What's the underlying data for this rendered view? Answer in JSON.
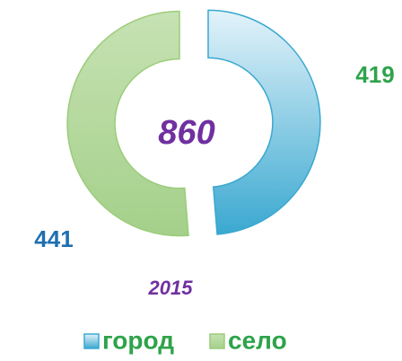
{
  "chart_data": {
    "type": "pie",
    "donut": true,
    "categories": [
      "город",
      "село"
    ],
    "values": [
      419,
      441
    ],
    "colors": [
      "#3aa8d0",
      "#9ccc7a"
    ],
    "total": 860,
    "subtitle": "2015",
    "legend": "bottom"
  }
}
